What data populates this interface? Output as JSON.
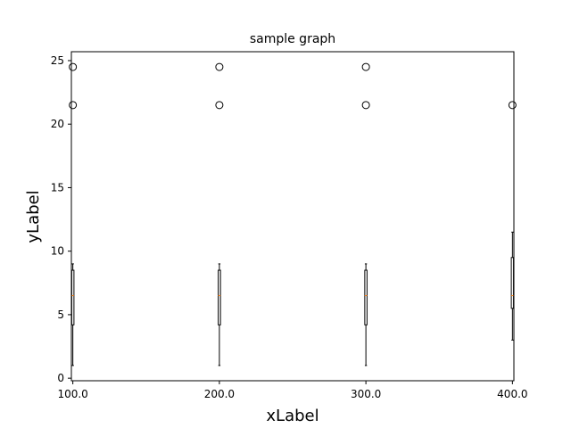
{
  "chart_data": {
    "type": "box",
    "title": "sample graph",
    "xlabel": "xLabel",
    "ylabel": "yLabel",
    "x_ticks": [
      100.0,
      200.0,
      300.0,
      400.0
    ],
    "x_tick_labels": [
      "100.0",
      "200.0",
      "300.0",
      "400.0"
    ],
    "y_ticks": [
      0,
      5,
      10,
      15,
      20,
      25
    ],
    "y_tick_labels": [
      "0",
      "5",
      "10",
      "15",
      "20",
      "25"
    ],
    "xlim": [
      99,
      401
    ],
    "ylim": [
      -0.2,
      25.7
    ],
    "grid": false,
    "boxes": [
      {
        "x": 100.0,
        "whisker_low": 1,
        "q1": 4.2,
        "median": 6.5,
        "q3": 8.5,
        "whisker_high": 9,
        "outliers": [
          21.5,
          24.5
        ]
      },
      {
        "x": 200.0,
        "whisker_low": 1,
        "q1": 4.2,
        "median": 6.5,
        "q3": 8.5,
        "whisker_high": 9,
        "outliers": [
          21.5,
          24.5
        ]
      },
      {
        "x": 300.0,
        "whisker_low": 1,
        "q1": 4.2,
        "median": 6.5,
        "q3": 8.5,
        "whisker_high": 9,
        "outliers": [
          21.5,
          24.5
        ]
      },
      {
        "x": 400.0,
        "whisker_low": 3,
        "q1": 5.5,
        "median": 6.5,
        "q3": 9.5,
        "whisker_high": 11.5,
        "outliers": [
          21.5
        ]
      }
    ],
    "colors": {
      "box": "#000000",
      "median": "#ff7f0e",
      "outlier_edge": "#000000"
    }
  }
}
